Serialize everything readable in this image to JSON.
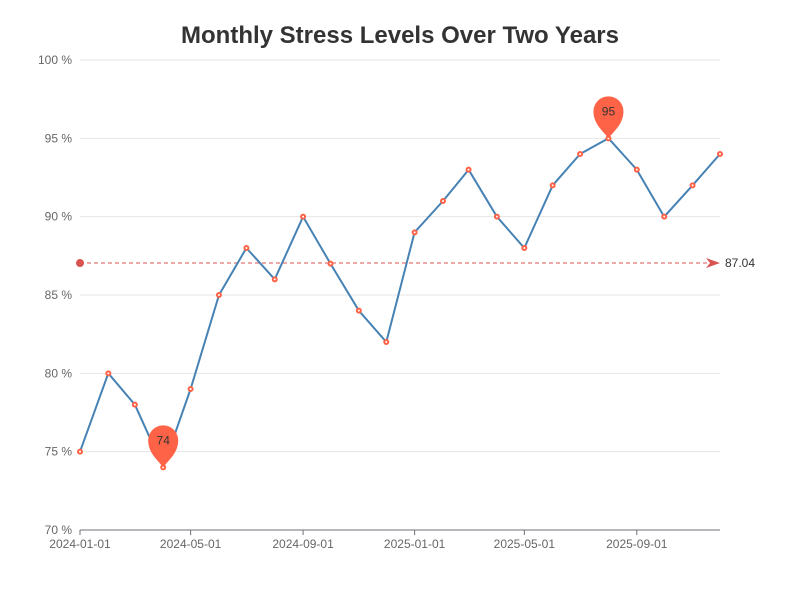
{
  "chart_data": {
    "type": "line",
    "title": "Monthly Stress Levels Over Two Years",
    "xlabel": "",
    "ylabel": "",
    "ylim": [
      70,
      100
    ],
    "y_ticks": [
      70,
      75,
      80,
      85,
      90,
      95,
      100
    ],
    "y_tick_suffix": " %",
    "x_ticks": [
      "2024-01-01",
      "2024-05-01",
      "2024-09-01",
      "2025-01-01",
      "2025-05-01",
      "2025-09-01"
    ],
    "grid": true,
    "x": [
      "2024-01-01",
      "2024-02-01",
      "2024-03-01",
      "2024-04-01",
      "2024-05-01",
      "2024-06-01",
      "2024-07-01",
      "2024-08-01",
      "2024-09-01",
      "2024-10-01",
      "2024-11-01",
      "2024-12-01",
      "2025-01-01",
      "2025-02-01",
      "2025-03-01",
      "2025-04-01",
      "2025-05-01",
      "2025-06-01",
      "2025-07-01",
      "2025-08-01",
      "2025-09-01",
      "2025-10-01",
      "2025-11-01",
      "2025-12-01"
    ],
    "values": [
      75,
      80,
      78,
      74,
      79,
      85,
      88,
      86,
      90,
      87,
      84,
      82,
      89,
      91,
      93,
      90,
      88,
      92,
      94,
      95,
      93,
      90,
      92,
      94
    ],
    "average": {
      "value": 87.04,
      "label": "87.04"
    },
    "max_marker": {
      "x": "2025-08-01",
      "value": 95,
      "label": "95"
    },
    "min_marker": {
      "x": "2024-04-01",
      "value": 74,
      "label": "74"
    },
    "colors": {
      "line": "#4682b4",
      "points": "#ff6347",
      "markers": "#ff6347",
      "average_line": "#d9534f"
    }
  }
}
